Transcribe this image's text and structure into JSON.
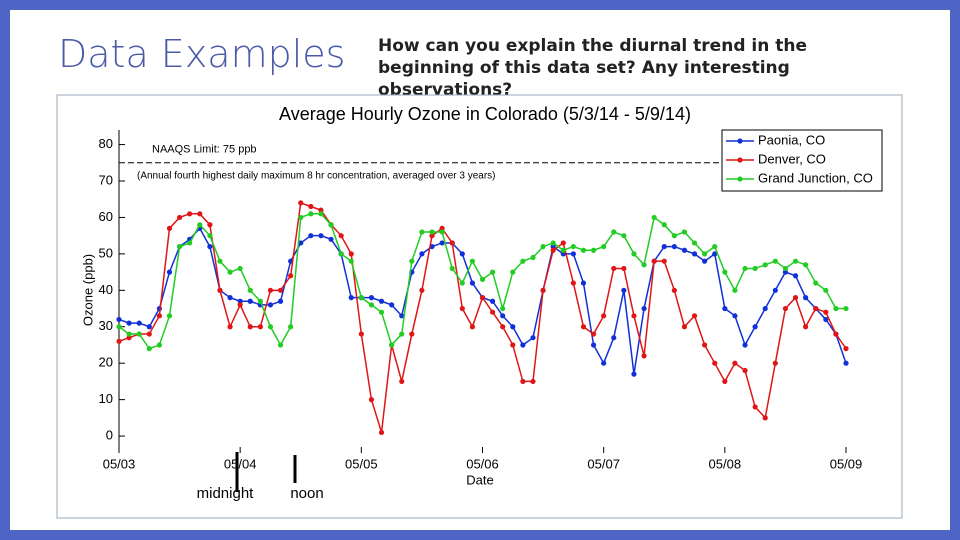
{
  "slide": {
    "title": "Data Examples",
    "question": "How can you explain the diurnal trend in the beginning of this data set?  Any interesting observations?",
    "annotations": [
      "midnight",
      "noon"
    ]
  },
  "chart_data": {
    "type": "line",
    "title": "Average Hourly Ozone in Colorado (5/3/14 - 5/9/14)",
    "xlabel": "Date",
    "ylabel": "Ozone (ppb)",
    "reference_line": {
      "value": 75,
      "label": "NAAQS Limit: 75 ppb",
      "note": "(Annual fourth highest daily maximum 8 hr concentration, averaged over 3 years)"
    },
    "x": [
      0,
      2,
      4,
      6,
      8,
      10,
      12,
      14,
      16,
      18,
      20,
      22,
      24,
      26,
      28,
      30,
      32,
      34,
      36,
      38,
      40,
      42,
      44,
      46,
      48,
      50,
      52,
      54,
      56,
      58,
      60,
      62,
      64,
      66,
      68,
      70,
      72,
      74,
      76,
      78,
      80,
      82,
      84,
      86,
      88,
      90,
      92,
      94,
      96,
      98,
      100,
      102,
      104,
      106,
      108,
      110,
      112,
      114,
      116,
      118,
      120,
      122,
      124,
      126,
      128,
      130,
      132,
      134,
      136,
      138,
      140,
      142,
      144
    ],
    "xlim": [
      0,
      144
    ],
    "xticks": [
      {
        "value": 0,
        "label": "05/03"
      },
      {
        "value": 24,
        "label": "05/04"
      },
      {
        "value": 48,
        "label": "05/05"
      },
      {
        "value": 72,
        "label": "05/06"
      },
      {
        "value": 96,
        "label": "05/07"
      },
      {
        "value": 120,
        "label": "05/08"
      },
      {
        "value": 144,
        "label": "05/09"
      }
    ],
    "ylim": [
      -3,
      84
    ],
    "yticks": [
      0,
      10,
      20,
      30,
      40,
      50,
      60,
      70,
      80
    ],
    "legend": "upper right",
    "series": [
      {
        "name": "Paonia, CO",
        "color": "#1030d8",
        "values": [
          32,
          31,
          31,
          30,
          35,
          45,
          52,
          54,
          57,
          52,
          40,
          38,
          37,
          37,
          36,
          36,
          37,
          48,
          53,
          55,
          55,
          54,
          50,
          38,
          38,
          38,
          37,
          36,
          33,
          45,
          50,
          52,
          53,
          53,
          50,
          42,
          38,
          37,
          33,
          30,
          25,
          27,
          40,
          52,
          50,
          50,
          42,
          25,
          20,
          27,
          40,
          17,
          35,
          48,
          52,
          52,
          51,
          50,
          48,
          50,
          35,
          33,
          25,
          30,
          35,
          40,
          45,
          44,
          38,
          35,
          32,
          28,
          20
        ]
      },
      {
        "name": "Denver, CO",
        "color": "#e01515",
        "values": [
          26,
          27,
          28,
          28,
          33,
          57,
          60,
          61,
          61,
          58,
          40,
          30,
          36,
          30,
          30,
          40,
          40,
          44,
          64,
          63,
          62,
          58,
          55,
          50,
          28,
          10,
          1,
          25,
          15,
          28,
          40,
          55,
          57,
          53,
          35,
          30,
          38,
          34,
          30,
          25,
          15,
          15,
          40,
          51,
          53,
          42,
          30,
          28,
          33,
          46,
          46,
          33,
          22,
          48,
          48,
          40,
          30,
          33,
          25,
          20,
          15,
          20,
          18,
          8,
          5,
          20,
          35,
          38,
          30,
          35,
          34,
          28,
          24
        ]
      },
      {
        "name": "Grand Junction, CO",
        "color": "#22cc22",
        "values": [
          30,
          28,
          28,
          24,
          25,
          33,
          52,
          53,
          58,
          55,
          48,
          45,
          46,
          40,
          37,
          30,
          25,
          30,
          60,
          61,
          61,
          58,
          50,
          48,
          38,
          36,
          34,
          25,
          28,
          48,
          56,
          56,
          56,
          46,
          42,
          48,
          43,
          45,
          35,
          45,
          48,
          49,
          52,
          53,
          51,
          52,
          51,
          51,
          52,
          56,
          55,
          50,
          47,
          60,
          58,
          55,
          56,
          53,
          50,
          52,
          45,
          40,
          46,
          46,
          47,
          48,
          46,
          48,
          47,
          42,
          40,
          35,
          35
        ]
      }
    ]
  }
}
